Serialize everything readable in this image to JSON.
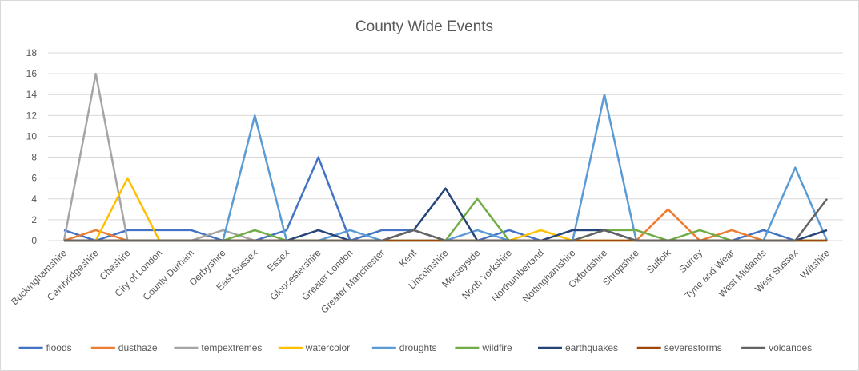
{
  "chart_data": {
    "type": "line",
    "title": "County Wide Events",
    "xlabel": "",
    "ylabel": "",
    "ylim": [
      0,
      18
    ],
    "yticks": [
      0,
      2,
      4,
      6,
      8,
      10,
      12,
      14,
      16,
      18
    ],
    "grid": true,
    "legend": "bottom",
    "categories": [
      "Buckinghamshire",
      "Cambridgeshire",
      "Cheshire",
      "City of London",
      "County Durham",
      "Derbyshire",
      "East Sussex",
      "Essex",
      "Gloucestershire",
      "Greater London",
      "Greater Manchester",
      "Kent",
      "Lincolnshire",
      "Merseyside",
      "North Yorkshire",
      "Northumberland",
      "Nottinghamshire",
      "Oxfordshire",
      "Shropshire",
      "Suffolk",
      "Surrey",
      "Tyne and Wear",
      "West Midlands",
      "West Sussex",
      "Wiltshire"
    ],
    "series": [
      {
        "name": "floods",
        "color": "#4472c4",
        "values": [
          1,
          0,
          1,
          1,
          1,
          0,
          0,
          1,
          8,
          0,
          1,
          1,
          0,
          0,
          1,
          0,
          1,
          1,
          0,
          0,
          0,
          0,
          1,
          0,
          0
        ]
      },
      {
        "name": "dusthaze",
        "color": "#ed7d31",
        "values": [
          0,
          1,
          0,
          0,
          0,
          0,
          0,
          0,
          0,
          0,
          0,
          0,
          0,
          0,
          0,
          0,
          0,
          0,
          0,
          3,
          0,
          1,
          0,
          0,
          0
        ]
      },
      {
        "name": "tempextremes",
        "color": "#a5a5a5",
        "values": [
          0,
          16,
          0,
          0,
          0,
          1,
          0,
          0,
          0,
          0,
          0,
          0,
          0,
          0,
          0,
          0,
          0,
          0,
          0,
          0,
          0,
          0,
          0,
          0,
          0
        ]
      },
      {
        "name": "watercolor",
        "color": "#ffc000",
        "values": [
          0,
          0,
          6,
          0,
          0,
          0,
          0,
          0,
          0,
          0,
          0,
          0,
          0,
          0,
          0,
          1,
          0,
          0,
          0,
          0,
          0,
          0,
          0,
          0,
          0
        ]
      },
      {
        "name": "droughts",
        "color": "#5b9bd5",
        "values": [
          0,
          0,
          0,
          0,
          0,
          0,
          12,
          0,
          0,
          1,
          0,
          0,
          0,
          1,
          0,
          0,
          0,
          14,
          0,
          0,
          0,
          0,
          0,
          7,
          0
        ]
      },
      {
        "name": "wildfire",
        "color": "#70ad47",
        "values": [
          0,
          0,
          0,
          0,
          0,
          0,
          1,
          0,
          0,
          0,
          0,
          0,
          0,
          4,
          0,
          0,
          0,
          1,
          1,
          0,
          1,
          0,
          0,
          0,
          0
        ]
      },
      {
        "name": "earthquakes",
        "color": "#264478",
        "values": [
          0,
          0,
          0,
          0,
          0,
          0,
          0,
          0,
          1,
          0,
          0,
          1,
          5,
          0,
          0,
          0,
          1,
          1,
          0,
          0,
          0,
          0,
          0,
          0,
          1
        ]
      },
      {
        "name": "severestorms",
        "color": "#9e480e",
        "values": [
          0,
          0,
          0,
          0,
          0,
          0,
          0,
          0,
          0,
          0,
          0,
          0,
          0,
          0,
          0,
          0,
          0,
          0,
          0,
          0,
          0,
          0,
          0,
          0,
          0
        ]
      },
      {
        "name": "volcanoes",
        "color": "#636363",
        "values": [
          0,
          0,
          0,
          0,
          0,
          0,
          0,
          0,
          0,
          0,
          0,
          1,
          0,
          0,
          0,
          0,
          0,
          1,
          0,
          0,
          0,
          0,
          0,
          0,
          4
        ]
      }
    ]
  }
}
